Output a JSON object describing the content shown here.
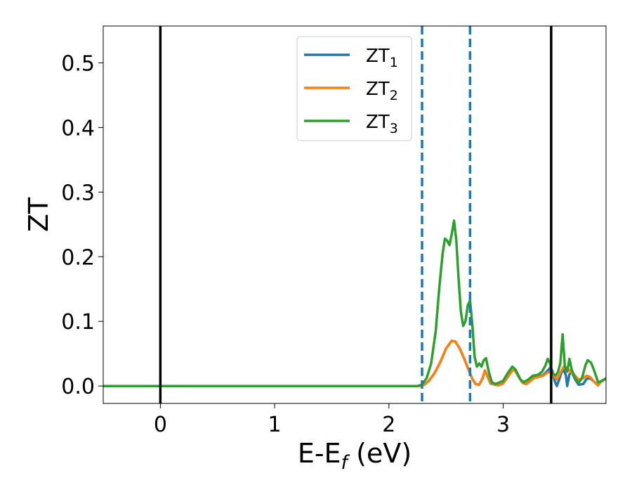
{
  "chart_data": {
    "type": "line",
    "xlabel_main": "E-E",
    "xlabel_sub": "f",
    "xlabel_tail": " (eV)",
    "ylabel": "ZT",
    "xlim": [
      -0.5,
      3.9
    ],
    "ylim": [
      -0.027,
      0.557
    ],
    "xticks": [
      0,
      1,
      2,
      3
    ],
    "xtick_labels": [
      "0",
      "1",
      "2",
      "3"
    ],
    "yticks": [
      0.0,
      0.1,
      0.2,
      0.3,
      0.4,
      0.5
    ],
    "ytick_labels": [
      "0.0",
      "0.1",
      "0.2",
      "0.3",
      "0.4",
      "0.5"
    ],
    "grid": false,
    "legend_position": "top-center",
    "series": [
      {
        "name_main": "ZT",
        "name_sub": "1",
        "color": "#1f77b4",
        "points": [
          [
            -0.5,
            0
          ],
          [
            2.27,
            0
          ],
          [
            2.31,
            0.002
          ],
          [
            2.35,
            0.008
          ],
          [
            2.4,
            0.02
          ],
          [
            2.45,
            0.037
          ],
          [
            2.5,
            0.058
          ],
          [
            2.55,
            0.07
          ],
          [
            2.58,
            0.069
          ],
          [
            2.62,
            0.058
          ],
          [
            2.66,
            0.042
          ],
          [
            2.7,
            0.024
          ],
          [
            2.73,
            0.011
          ],
          [
            2.76,
            0.003
          ],
          [
            2.79,
            0.002
          ],
          [
            2.82,
            0.012
          ],
          [
            2.84,
            0.024
          ],
          [
            2.86,
            0.016
          ],
          [
            2.89,
            0.004
          ],
          [
            2.93,
            0.002
          ],
          [
            2.96,
            0.001
          ],
          [
            3.0,
            0.004
          ],
          [
            3.04,
            0.014
          ],
          [
            3.08,
            0.024
          ],
          [
            3.1,
            0.025
          ],
          [
            3.13,
            0.016
          ],
          [
            3.17,
            0.005
          ],
          [
            3.2,
            0.003
          ],
          [
            3.24,
            0.008
          ],
          [
            3.27,
            0.013
          ],
          [
            3.31,
            0.015
          ],
          [
            3.35,
            0.017
          ],
          [
            3.38,
            0.022
          ],
          [
            3.41,
            0.028
          ],
          [
            3.43,
            0.024
          ],
          [
            3.45,
            0.008
          ],
          [
            3.47,
            0.0
          ],
          [
            3.49,
            0.01
          ],
          [
            3.51,
            0.021
          ],
          [
            3.53,
            0.025
          ],
          [
            3.55,
            0.016
          ],
          [
            3.56,
            0.0
          ],
          [
            3.58,
            0.018
          ],
          [
            3.6,
            0.022
          ],
          [
            3.63,
            0.01
          ],
          [
            3.66,
            0.002
          ],
          [
            3.7,
            0.003
          ],
          [
            3.73,
            0.011
          ],
          [
            3.76,
            0.012
          ],
          [
            3.8,
            0.006
          ],
          [
            3.83,
            0.001
          ],
          [
            3.86,
            0.008
          ],
          [
            3.9,
            0.011
          ]
        ]
      },
      {
        "name_main": "ZT",
        "name_sub": "2",
        "color": "#ff7f0e",
        "points": [
          [
            -0.5,
            0
          ],
          [
            2.27,
            0
          ],
          [
            2.31,
            0.002
          ],
          [
            2.35,
            0.008
          ],
          [
            2.4,
            0.02
          ],
          [
            2.45,
            0.037
          ],
          [
            2.5,
            0.058
          ],
          [
            2.55,
            0.07
          ],
          [
            2.58,
            0.069
          ],
          [
            2.62,
            0.058
          ],
          [
            2.66,
            0.042
          ],
          [
            2.7,
            0.024
          ],
          [
            2.73,
            0.011
          ],
          [
            2.76,
            0.003
          ],
          [
            2.79,
            0.002
          ],
          [
            2.82,
            0.012
          ],
          [
            2.84,
            0.024
          ],
          [
            2.86,
            0.017
          ],
          [
            2.89,
            0.005
          ],
          [
            2.93,
            0.002
          ],
          [
            2.96,
            0.001
          ],
          [
            3.0,
            0.004
          ],
          [
            3.04,
            0.014
          ],
          [
            3.08,
            0.024
          ],
          [
            3.1,
            0.025
          ],
          [
            3.13,
            0.016
          ],
          [
            3.17,
            0.005
          ],
          [
            3.2,
            0.003
          ],
          [
            3.24,
            0.008
          ],
          [
            3.27,
            0.012
          ],
          [
            3.31,
            0.014
          ],
          [
            3.35,
            0.016
          ],
          [
            3.38,
            0.02
          ],
          [
            3.41,
            0.022
          ],
          [
            3.44,
            0.016
          ],
          [
            3.47,
            0.01
          ],
          [
            3.5,
            0.02
          ],
          [
            3.53,
            0.03
          ],
          [
            3.56,
            0.028
          ],
          [
            3.59,
            0.022
          ],
          [
            3.62,
            0.018
          ],
          [
            3.66,
            0.01
          ],
          [
            3.7,
            0.012
          ],
          [
            3.73,
            0.016
          ],
          [
            3.76,
            0.014
          ],
          [
            3.8,
            0.006
          ],
          [
            3.83,
            0.001
          ],
          [
            3.86,
            0.008
          ],
          [
            3.9,
            0.011
          ]
        ]
      },
      {
        "name_main": "ZT",
        "name_sub": "3",
        "color": "#2ca02c",
        "points": [
          [
            -0.5,
            0
          ],
          [
            2.25,
            0
          ],
          [
            2.29,
            0.002
          ],
          [
            2.33,
            0.012
          ],
          [
            2.37,
            0.035
          ],
          [
            2.41,
            0.085
          ],
          [
            2.44,
            0.15
          ],
          [
            2.47,
            0.205
          ],
          [
            2.49,
            0.228
          ],
          [
            2.51,
            0.225
          ],
          [
            2.53,
            0.218
          ],
          [
            2.55,
            0.235
          ],
          [
            2.57,
            0.256
          ],
          [
            2.59,
            0.225
          ],
          [
            2.61,
            0.165
          ],
          [
            2.63,
            0.115
          ],
          [
            2.65,
            0.093
          ],
          [
            2.67,
            0.1
          ],
          [
            2.69,
            0.125
          ],
          [
            2.71,
            0.132
          ],
          [
            2.73,
            0.095
          ],
          [
            2.75,
            0.045
          ],
          [
            2.77,
            0.03
          ],
          [
            2.79,
            0.035
          ],
          [
            2.81,
            0.03
          ],
          [
            2.83,
            0.04
          ],
          [
            2.85,
            0.043
          ],
          [
            2.87,
            0.025
          ],
          [
            2.9,
            0.006
          ],
          [
            2.93,
            0.003
          ],
          [
            2.96,
            0.005
          ],
          [
            3.0,
            0.008
          ],
          [
            3.04,
            0.02
          ],
          [
            3.08,
            0.03
          ],
          [
            3.11,
            0.025
          ],
          [
            3.15,
            0.01
          ],
          [
            3.18,
            0.006
          ],
          [
            3.22,
            0.01
          ],
          [
            3.26,
            0.016
          ],
          [
            3.3,
            0.017
          ],
          [
            3.34,
            0.022
          ],
          [
            3.37,
            0.032
          ],
          [
            3.39,
            0.042
          ],
          [
            3.41,
            0.035
          ],
          [
            3.43,
            0.02
          ],
          [
            3.46,
            0.016
          ],
          [
            3.48,
            0.022
          ],
          [
            3.5,
            0.035
          ],
          [
            3.52,
            0.08
          ],
          [
            3.54,
            0.03
          ],
          [
            3.56,
            0.022
          ],
          [
            3.58,
            0.042
          ],
          [
            3.6,
            0.025
          ],
          [
            3.63,
            0.012
          ],
          [
            3.66,
            0.005
          ],
          [
            3.69,
            0.012
          ],
          [
            3.72,
            0.032
          ],
          [
            3.74,
            0.04
          ],
          [
            3.77,
            0.036
          ],
          [
            3.8,
            0.022
          ],
          [
            3.83,
            0.006
          ],
          [
            3.86,
            0.007
          ],
          [
            3.9,
            0.012
          ]
        ]
      }
    ],
    "vlines": [
      {
        "x": 0.0,
        "style": "solid",
        "color": "#000000"
      },
      {
        "x": 3.42,
        "style": "solid",
        "color": "#000000"
      },
      {
        "x": 2.29,
        "style": "dashed",
        "color": "#1f77b4"
      },
      {
        "x": 2.71,
        "style": "dashed",
        "color": "#1f77b4"
      }
    ]
  }
}
